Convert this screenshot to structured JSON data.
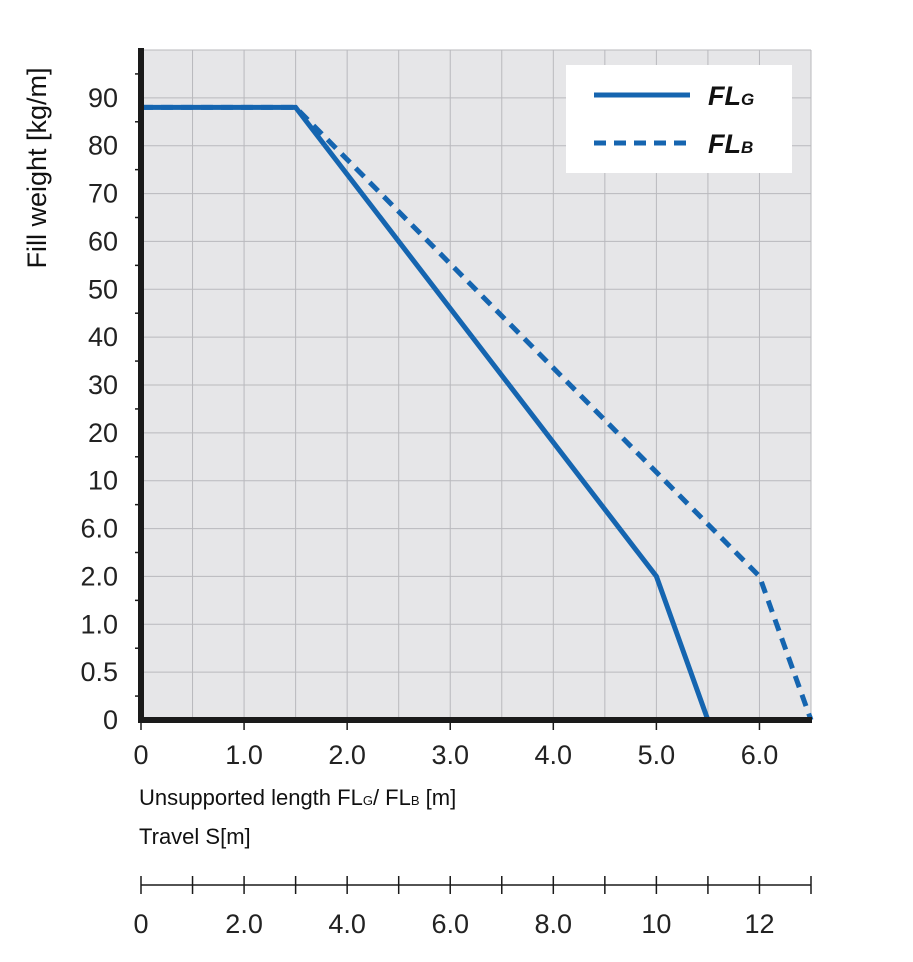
{
  "chart_data": {
    "type": "line",
    "ylabel": "Fill weight [kg/m]",
    "xlabel_prefix": "Unsupported length FL",
    "xlabel_sub1": "G",
    "xlabel_sep": "/ FL",
    "xlabel_sub2": "B",
    "xlabel_suffix": " [m]",
    "secondary_axis_title": "Travel S[m]",
    "y_tick_labels": [
      "0",
      "0.5",
      "1.0",
      "2.0",
      "6.0",
      "10",
      "20",
      "30",
      "40",
      "50",
      "60",
      "70",
      "80",
      "90"
    ],
    "x_ticks": [
      0,
      1.0,
      2.0,
      3.0,
      4.0,
      5.0,
      6.0
    ],
    "x_tick_labels": [
      "0",
      "1.0",
      "2.0",
      "3.0",
      "4.0",
      "5.0",
      "6.0"
    ],
    "xlim": [
      0,
      6.5
    ],
    "secondary_ticks": [
      0,
      2.0,
      4.0,
      6.0,
      8.0,
      10,
      12
    ],
    "secondary_tick_labels": [
      "0",
      "2.0",
      "4.0",
      "6.0",
      "8.0",
      "10",
      "12"
    ],
    "secondary_xlim": [
      0,
      13
    ],
    "grid": true,
    "legend_position": "top-right",
    "series": [
      {
        "name": "FLG",
        "label_main": "FL",
        "label_sub": "G",
        "style": "solid",
        "color": "#1565b0",
        "x": [
          0,
          1.5,
          5.0,
          5.5
        ],
        "y": [
          88,
          88,
          2.0,
          0
        ]
      },
      {
        "name": "FLB",
        "label_main": "FL",
        "label_sub": "B",
        "style": "dashed",
        "color": "#1565b0",
        "x": [
          0,
          1.5,
          6.0,
          6.5
        ],
        "y": [
          88,
          88,
          2.0,
          0
        ]
      }
    ]
  }
}
